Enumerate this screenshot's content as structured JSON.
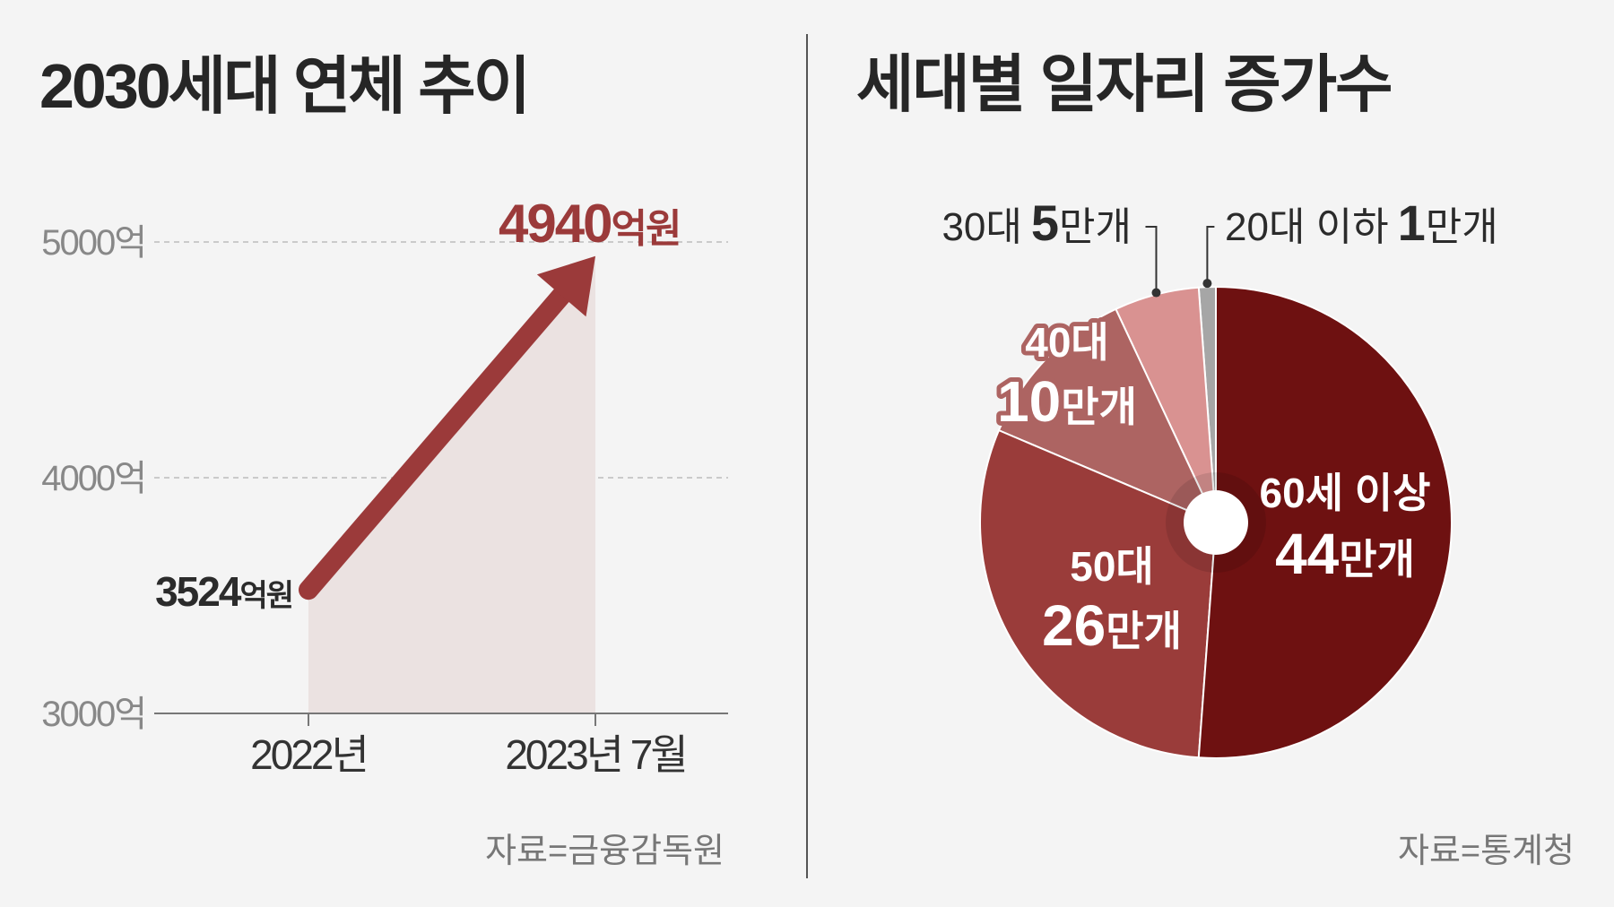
{
  "chart_data": [
    {
      "type": "line",
      "title": "2030세대 연체 추이",
      "x": [
        "2022년",
        "2023년 7월"
      ],
      "series": [
        {
          "values": [
            3524,
            4940
          ],
          "labels": [
            "3524억원",
            "4940억원"
          ]
        }
      ],
      "value_label_parts": [
        {
          "number": "3524",
          "unit": "억원"
        },
        {
          "number": "4940",
          "unit": "억원"
        }
      ],
      "ylim": [
        3000,
        5000
      ],
      "yticks": [
        {
          "value": 5000,
          "label": "5000억"
        },
        {
          "value": 4000,
          "label": "4000억"
        },
        {
          "value": 3000,
          "label": "3000억"
        }
      ],
      "grid": true,
      "source": "자료=금융감독원",
      "colors": {
        "line": "#9b3a3a",
        "area": "#ebe2e1",
        "grid": "#bbbbbb",
        "axis": "#777777"
      }
    },
    {
      "type": "pie",
      "title": "세대별 일자리 증가수",
      "categories": [
        "20대 이하",
        "30대",
        "40대",
        "50대",
        "60세 이상"
      ],
      "values": [
        1,
        5,
        10,
        26,
        44
      ],
      "unit": "만개",
      "labels": [
        {
          "line1": "20대 이하",
          "number": "1",
          "unit": "만개"
        },
        {
          "line1": "30대",
          "number": "5",
          "unit": "만개"
        },
        {
          "line1": "40대",
          "number": "10",
          "unit": "만개"
        },
        {
          "line1": "50대",
          "number": "26",
          "unit": "만개"
        },
        {
          "line1": "60세 이상",
          "number": "44",
          "unit": "만개"
        }
      ],
      "source": "자료=통계청",
      "colors": [
        "#a6a6a6",
        "#d99291",
        "#ad6462",
        "#9a3c3a",
        "#6e1111"
      ]
    }
  ]
}
